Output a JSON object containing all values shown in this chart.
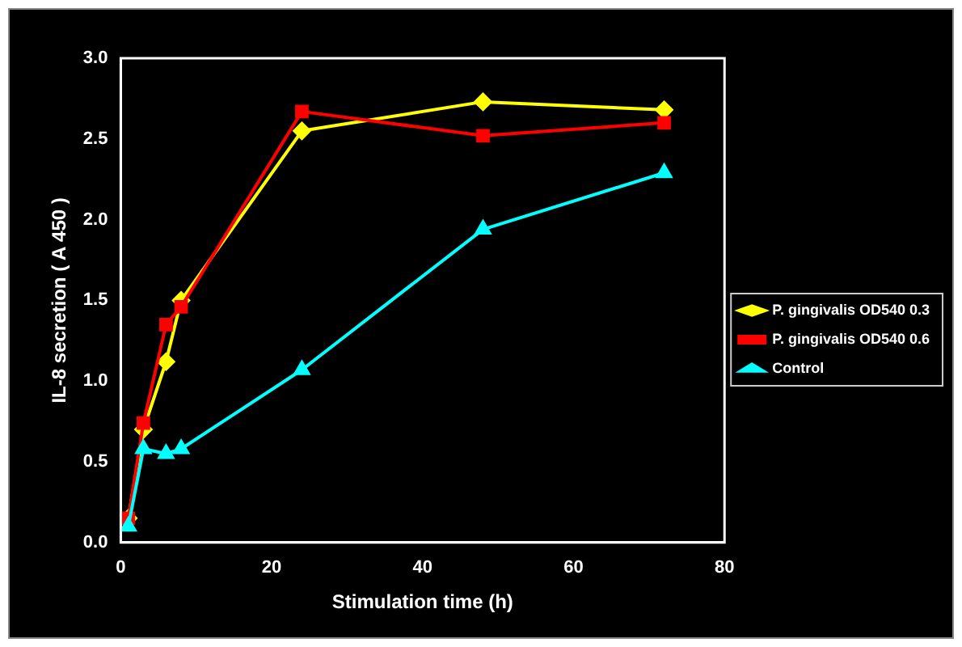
{
  "chart_data": {
    "type": "line",
    "xlabel": "Stimulation time (h)",
    "ylabel": "IL-8 secretion ( A 450 )",
    "x": [
      1,
      3,
      6,
      8,
      24,
      48,
      72
    ],
    "series": [
      {
        "name": "P. gingivalis OD540 0.3",
        "color": "#ffff00",
        "marker": "diamond",
        "values": [
          0.15,
          0.7,
          1.12,
          1.5,
          2.55,
          2.73,
          2.68
        ]
      },
      {
        "name": "P. gingivalis OD540 0.6",
        "color": "#ff0000",
        "marker": "square",
        "values": [
          0.15,
          0.74,
          1.35,
          1.46,
          2.67,
          2.52,
          2.6
        ]
      },
      {
        "name": "Control",
        "color": "#00ffff",
        "marker": "triangle",
        "values": [
          0.1,
          0.58,
          0.55,
          0.58,
          1.07,
          1.94,
          2.29
        ]
      }
    ],
    "xlim": [
      0,
      80
    ],
    "xticks": [
      0,
      20,
      40,
      60,
      80
    ],
    "ylim": [
      0,
      3
    ],
    "yticks": [
      {
        "value": 0,
        "label": "0.0"
      },
      0.5,
      {
        "value": 1,
        "label": "1.0"
      },
      1.5,
      {
        "value": 2,
        "label": "2.0"
      },
      2.5,
      {
        "value": 3,
        "label": "3.0"
      }
    ],
    "grid": false,
    "legend": "right",
    "line_style": "solid"
  }
}
